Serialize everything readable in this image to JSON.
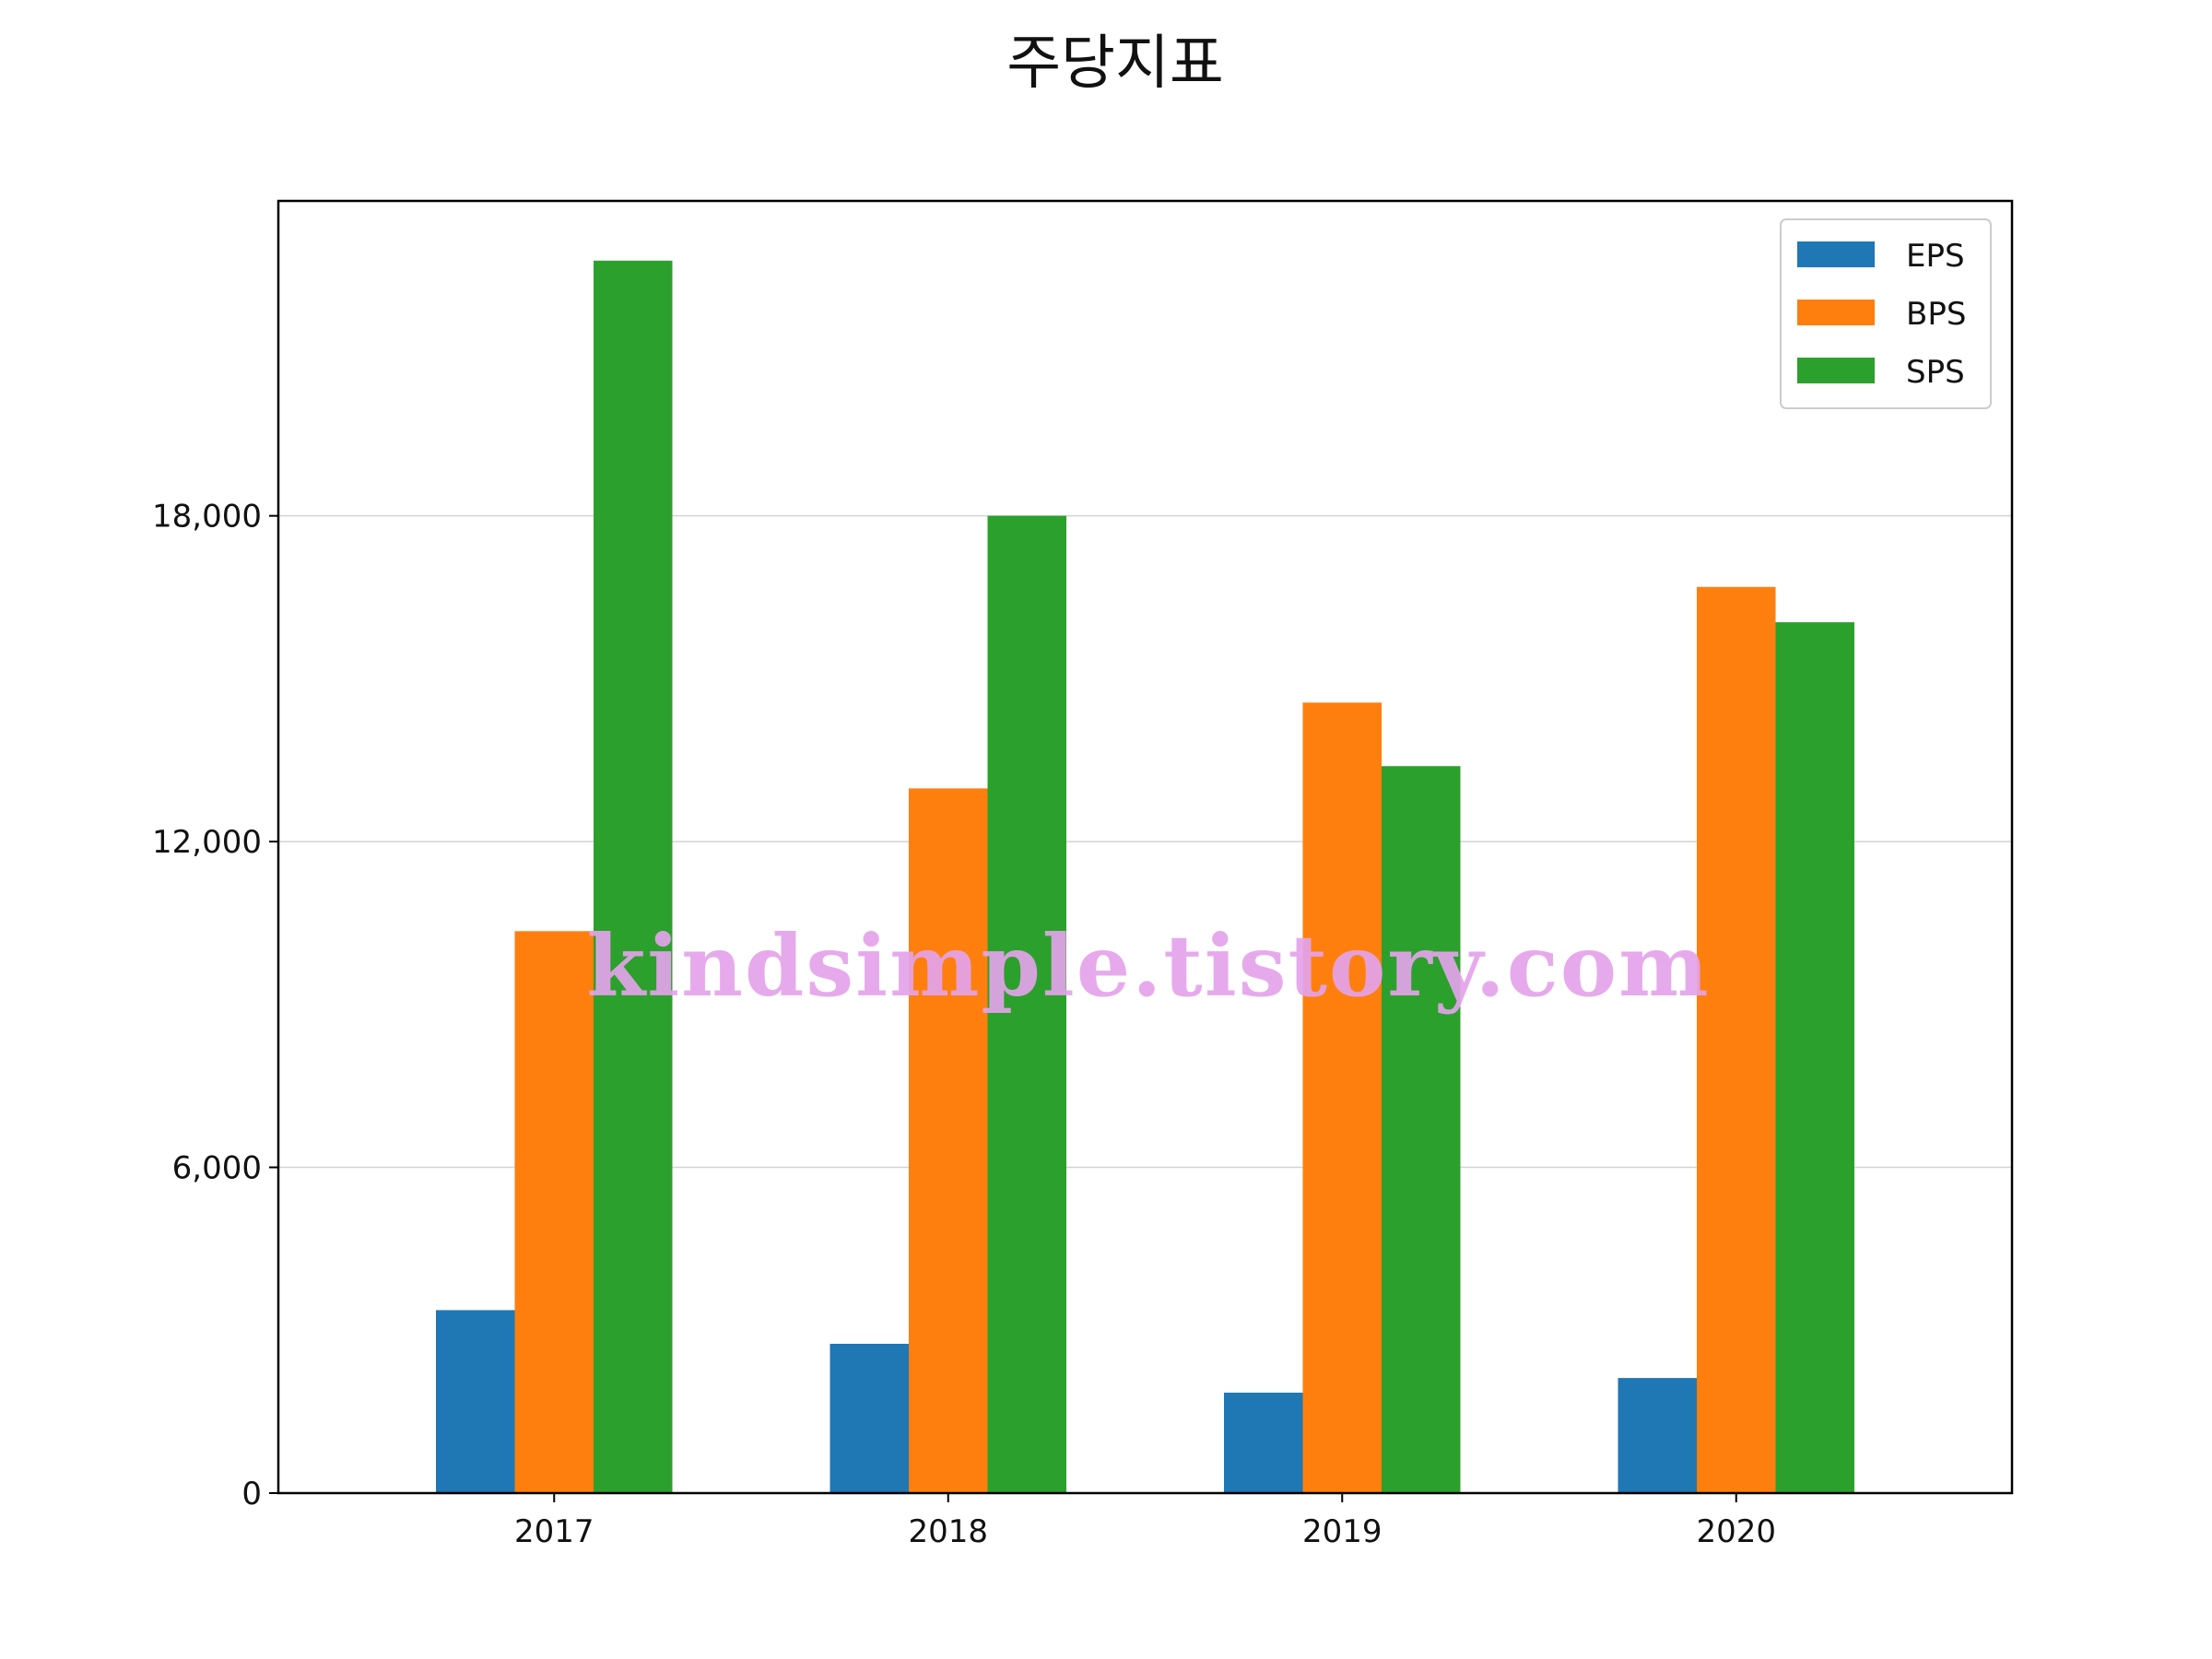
{
  "chart_data": {
    "type": "bar",
    "title": "주당지표",
    "xlabel": "",
    "ylabel": "",
    "categories": [
      "2017",
      "2018",
      "2019",
      "2020"
    ],
    "series": [
      {
        "name": "EPS",
        "color": "#1f77b4",
        "values": [
          3370,
          2750,
          1850,
          2120
        ]
      },
      {
        "name": "BPS",
        "color": "#ff7f0e",
        "values": [
          10350,
          12980,
          14560,
          16690
        ]
      },
      {
        "name": "SPS",
        "color": "#2ca02c",
        "values": [
          22700,
          18000,
          13390,
          16040
        ]
      }
    ],
    "ylim": [
      0,
      23800
    ],
    "yticks": [
      0,
      6000,
      12000,
      18000
    ],
    "ytick_labels": [
      "0",
      "6,000",
      "12,000",
      "18,000"
    ],
    "grid": "y",
    "legend_position": "top-right"
  },
  "watermark": "kindsimple.tistory.com"
}
